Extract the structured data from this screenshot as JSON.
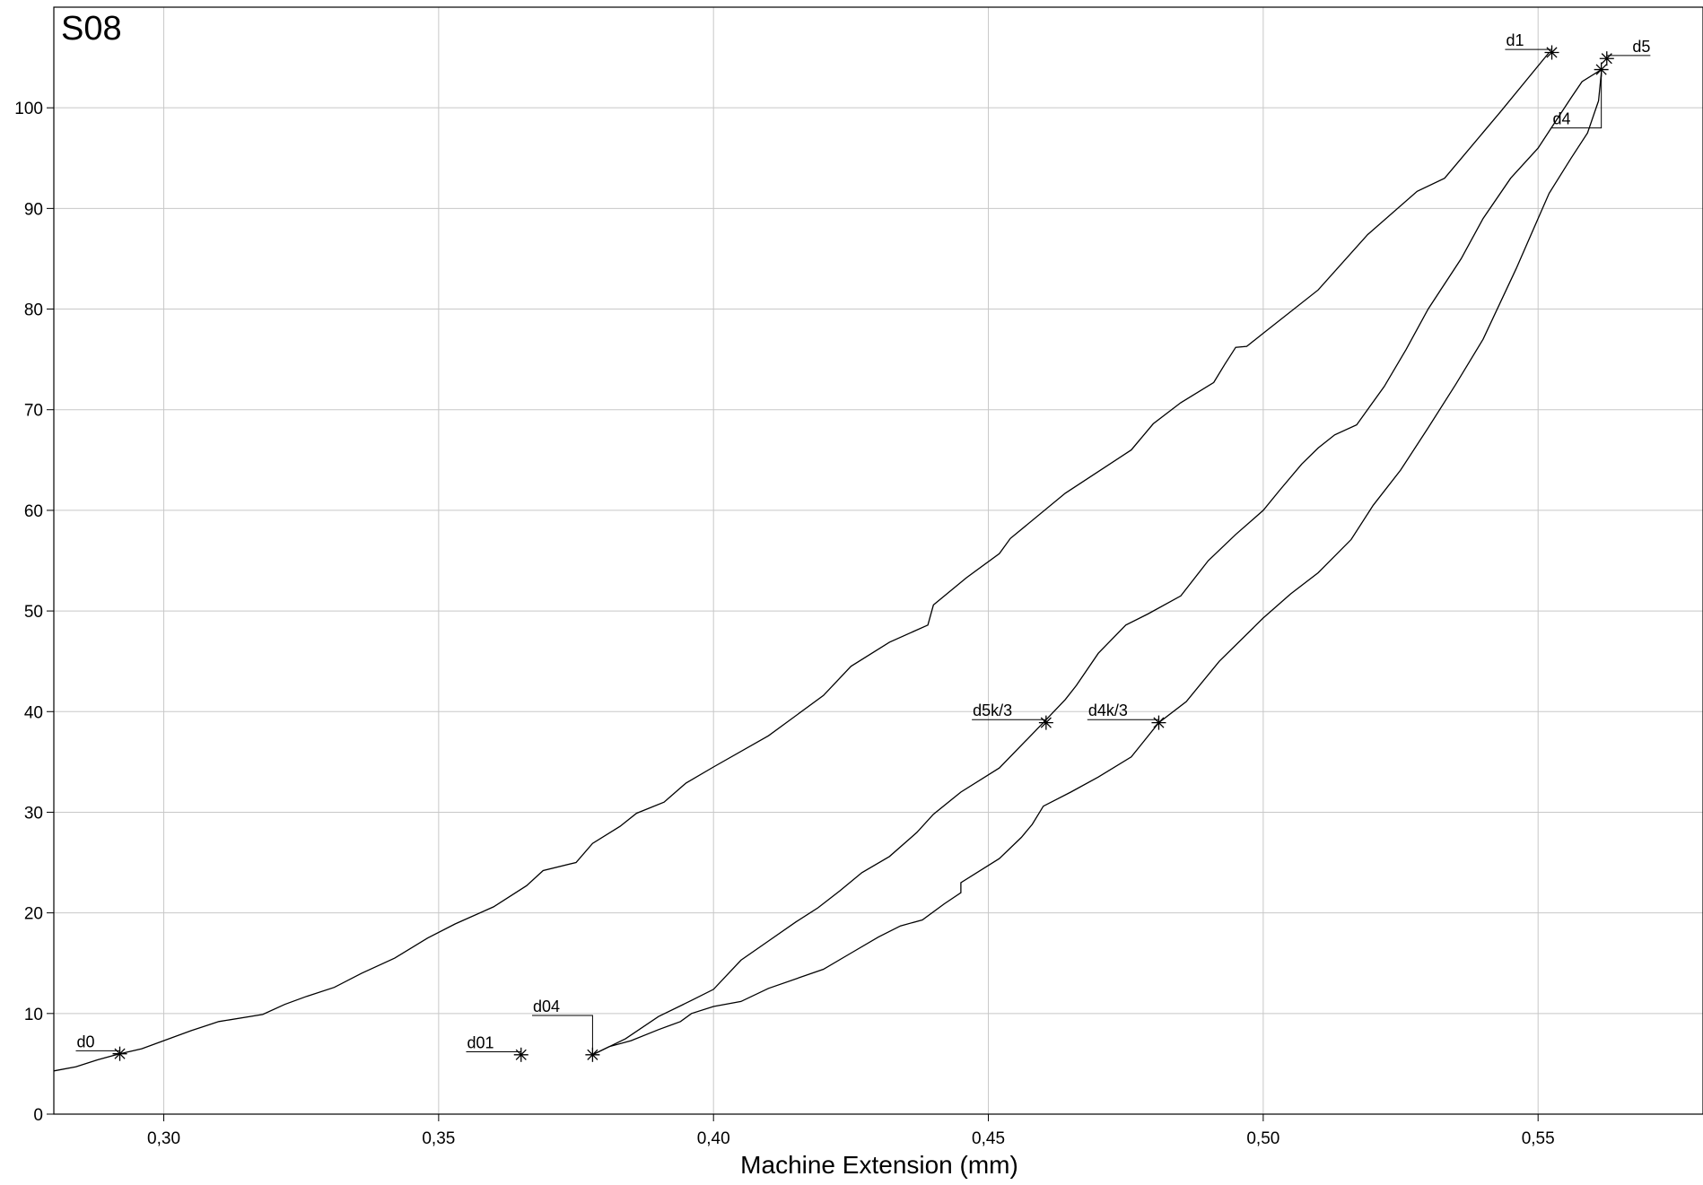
{
  "chart_data": {
    "type": "line",
    "title": "S08",
    "xlabel": "Machine Extension (mm)",
    "ylabel": "",
    "xlim": [
      0.28,
      0.58
    ],
    "ylim": [
      0,
      110
    ],
    "xticks": [
      0.3,
      0.35,
      0.4,
      0.45,
      0.5,
      0.55
    ],
    "xtick_labels": [
      "0,30",
      "0,35",
      "0,40",
      "0,45",
      "0,50",
      "0,55"
    ],
    "yticks": [
      0,
      10,
      20,
      30,
      40,
      50,
      60,
      70,
      80,
      90,
      100
    ],
    "ytick_labels": [
      "0",
      "10",
      "20",
      "30",
      "40",
      "50",
      "60",
      "70",
      "80",
      "90",
      "100"
    ],
    "grid": true,
    "series": [
      {
        "id": "first-loading",
        "points": [
          [
            0.28,
            4.3
          ],
          [
            0.284,
            4.7
          ],
          [
            0.288,
            5.4
          ],
          [
            0.292,
            6.0
          ],
          [
            0.296,
            6.5
          ],
          [
            0.3,
            7.3
          ],
          [
            0.305,
            8.3
          ],
          [
            0.31,
            9.2
          ],
          [
            0.318,
            9.9
          ],
          [
            0.322,
            10.9
          ],
          [
            0.326,
            11.7
          ],
          [
            0.331,
            12.6
          ],
          [
            0.336,
            14.0
          ],
          [
            0.342,
            15.5
          ],
          [
            0.348,
            17.5
          ],
          [
            0.353,
            18.9
          ],
          [
            0.36,
            20.6
          ],
          [
            0.366,
            22.7
          ],
          [
            0.369,
            24.2
          ],
          [
            0.375,
            25.0
          ],
          [
            0.378,
            26.9
          ],
          [
            0.383,
            28.6
          ],
          [
            0.386,
            29.9
          ],
          [
            0.391,
            31.0
          ],
          [
            0.395,
            32.9
          ],
          [
            0.4,
            34.5
          ],
          [
            0.41,
            37.6
          ],
          [
            0.42,
            41.6
          ],
          [
            0.425,
            44.5
          ],
          [
            0.432,
            46.9
          ],
          [
            0.439,
            48.6
          ],
          [
            0.44,
            50.6
          ],
          [
            0.446,
            53.3
          ],
          [
            0.452,
            55.7
          ],
          [
            0.454,
            57.2
          ],
          [
            0.464,
            61.7
          ],
          [
            0.476,
            66.0
          ],
          [
            0.48,
            68.6
          ],
          [
            0.485,
            70.7
          ],
          [
            0.491,
            72.7
          ],
          [
            0.493,
            74.5
          ],
          [
            0.495,
            76.2
          ],
          [
            0.497,
            76.3
          ],
          [
            0.5,
            77.6
          ],
          [
            0.51,
            81.9
          ],
          [
            0.519,
            87.4
          ],
          [
            0.528,
            91.7
          ],
          [
            0.533,
            93.0
          ],
          [
            0.543,
            99.5
          ],
          [
            0.552,
            105.5
          ]
        ]
      },
      {
        "id": "unloading",
        "points": [
          [
            0.378,
            5.9
          ],
          [
            0.381,
            6.7
          ],
          [
            0.385,
            7.3
          ],
          [
            0.39,
            8.4
          ],
          [
            0.394,
            9.2
          ],
          [
            0.396,
            10.0
          ],
          [
            0.4,
            10.7
          ],
          [
            0.405,
            11.2
          ],
          [
            0.41,
            12.5
          ],
          [
            0.42,
            14.4
          ],
          [
            0.425,
            16.0
          ],
          [
            0.43,
            17.6
          ],
          [
            0.434,
            18.7
          ],
          [
            0.438,
            19.3
          ],
          [
            0.442,
            20.9
          ],
          [
            0.445,
            22.0
          ],
          [
            0.445,
            23.0
          ],
          [
            0.452,
            25.4
          ],
          [
            0.456,
            27.5
          ],
          [
            0.458,
            28.8
          ],
          [
            0.46,
            30.6
          ],
          [
            0.465,
            32.0
          ],
          [
            0.47,
            33.5
          ],
          [
            0.476,
            35.5
          ],
          [
            0.481,
            38.9
          ],
          [
            0.486,
            41.0
          ],
          [
            0.492,
            45.0
          ],
          [
            0.5,
            49.3
          ],
          [
            0.505,
            51.7
          ],
          [
            0.51,
            53.8
          ],
          [
            0.516,
            57.1
          ],
          [
            0.52,
            60.5
          ],
          [
            0.525,
            64.0
          ],
          [
            0.53,
            68.2
          ],
          [
            0.535,
            72.5
          ],
          [
            0.54,
            77.0
          ],
          [
            0.546,
            84.0
          ],
          [
            0.55,
            89.0
          ],
          [
            0.552,
            91.5
          ],
          [
            0.556,
            95.0
          ],
          [
            0.559,
            97.5
          ],
          [
            0.561,
            100.7
          ],
          [
            0.5615,
            103.5
          ]
        ]
      },
      {
        "id": "reloading",
        "points": [
          [
            0.378,
            5.9
          ],
          [
            0.384,
            7.5
          ],
          [
            0.39,
            9.7
          ],
          [
            0.396,
            11.3
          ],
          [
            0.4,
            12.4
          ],
          [
            0.405,
            15.3
          ],
          [
            0.41,
            17.2
          ],
          [
            0.415,
            19.1
          ],
          [
            0.419,
            20.5
          ],
          [
            0.423,
            22.2
          ],
          [
            0.427,
            24.0
          ],
          [
            0.432,
            25.6
          ],
          [
            0.437,
            28.0
          ],
          [
            0.44,
            29.8
          ],
          [
            0.445,
            32.0
          ],
          [
            0.452,
            34.4
          ],
          [
            0.46,
            38.9
          ],
          [
            0.464,
            41.2
          ],
          [
            0.466,
            42.6
          ],
          [
            0.47,
            45.8
          ],
          [
            0.475,
            48.6
          ],
          [
            0.479,
            49.7
          ],
          [
            0.485,
            51.5
          ],
          [
            0.49,
            55.0
          ],
          [
            0.495,
            57.6
          ],
          [
            0.5,
            60.0
          ],
          [
            0.503,
            62.0
          ],
          [
            0.507,
            64.6
          ],
          [
            0.51,
            66.2
          ],
          [
            0.513,
            67.5
          ],
          [
            0.517,
            68.5
          ],
          [
            0.522,
            72.3
          ],
          [
            0.526,
            76.0
          ],
          [
            0.53,
            80.0
          ],
          [
            0.536,
            85.0
          ],
          [
            0.54,
            89.0
          ],
          [
            0.545,
            93.0
          ],
          [
            0.55,
            96.0
          ],
          [
            0.553,
            98.5
          ],
          [
            0.556,
            101.0
          ],
          [
            0.558,
            102.6
          ],
          [
            0.5615,
            103.8
          ]
        ]
      }
    ],
    "markers": [
      {
        "label": "d0",
        "x": 0.292,
        "y": 6.0,
        "label_x": 0.284,
        "label_y": 6.3
      },
      {
        "label": "d01",
        "x": 0.365,
        "y": 5.9,
        "label_x": 0.355,
        "label_y": 6.2
      },
      {
        "label": "d04",
        "x": 0.378,
        "y": 5.9,
        "label_x": 0.367,
        "label_y": 9.8
      },
      {
        "label": "d5k/3",
        "x": 0.4605,
        "y": 38.9,
        "label_x": 0.447,
        "label_y": 39.2
      },
      {
        "label": "d4k/3",
        "x": 0.481,
        "y": 38.9,
        "label_x": 0.468,
        "label_y": 39.2
      },
      {
        "label": "d1",
        "x": 0.5525,
        "y": 105.5,
        "label_x": 0.544,
        "label_y": 105.8
      },
      {
        "label": "d5",
        "x": 0.5625,
        "y": 104.9,
        "label_x": 0.567,
        "label_y": 105.2
      },
      {
        "label": "d4",
        "x": 0.5615,
        "y": 103.8,
        "label_x": 0.5525,
        "label_y": 98.0
      }
    ]
  }
}
